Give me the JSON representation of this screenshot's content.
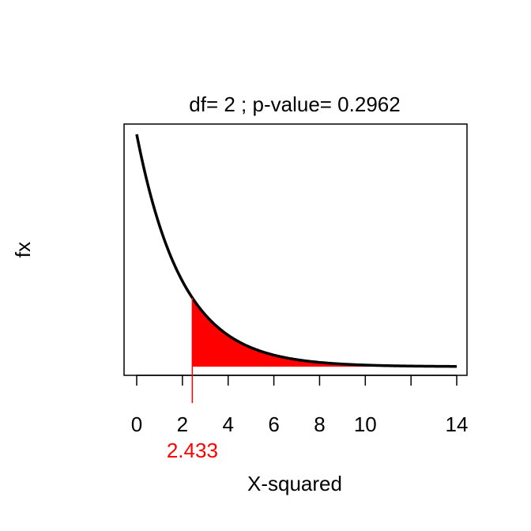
{
  "chart_data": {
    "type": "area",
    "title": "df= 2 ; p-value= 0.2962",
    "xlabel": "X-squared",
    "ylabel": "fx",
    "df": 2,
    "p_value": 0.2962,
    "statistic": 2.433,
    "statistic_label": "2.433",
    "xlim": [
      0,
      14
    ],
    "x_ticks": [
      0,
      2,
      4,
      6,
      8,
      10,
      14
    ],
    "x_tick_labels": [
      "0",
      "2",
      "4",
      "6",
      "8",
      "10",
      "14"
    ],
    "curve": {
      "x": [
        0,
        0.5,
        1,
        1.5,
        2,
        2.433,
        3,
        3.5,
        4,
        5,
        6,
        7,
        8,
        9,
        10,
        11,
        12,
        13,
        14
      ],
      "y": [
        0.5,
        0.3894,
        0.3033,
        0.2362,
        0.1839,
        0.1482,
        0.1116,
        0.0869,
        0.0677,
        0.041,
        0.0249,
        0.0151,
        0.0092,
        0.0056,
        0.0034,
        0.002,
        0.0012,
        0.0008,
        0.0005
      ]
    },
    "shaded_region": {
      "from": 2.433,
      "to": 12.4,
      "color": "#ff0000"
    },
    "colors": {
      "curve": "#000000",
      "shade": "#ff0000",
      "marker": "#ff0000"
    },
    "grid": false,
    "legend": "none"
  }
}
